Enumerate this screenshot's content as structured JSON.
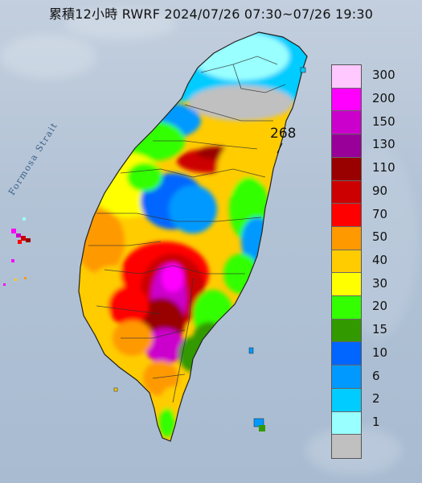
{
  "title": "累積12小時 RWRF 2024/07/26 07:30~07/26 19:30",
  "water_label": "Formosa Strait",
  "max_value_label": "268",
  "legend": {
    "items": [
      {
        "label": "300",
        "color": "#ffc9ff"
      },
      {
        "label": "200",
        "color": "#ff00ff"
      },
      {
        "label": "150",
        "color": "#cc00cc"
      },
      {
        "label": "130",
        "color": "#990099"
      },
      {
        "label": "110",
        "color": "#990000"
      },
      {
        "label": "90",
        "color": "#cc0000"
      },
      {
        "label": "70",
        "color": "#ff0000"
      },
      {
        "label": "50",
        "color": "#ff9900"
      },
      {
        "label": "40",
        "color": "#ffcc00"
      },
      {
        "label": "30",
        "color": "#ffff00"
      },
      {
        "label": "20",
        "color": "#33ff00"
      },
      {
        "label": "15",
        "color": "#339900"
      },
      {
        "label": "10",
        "color": "#0066ff"
      },
      {
        "label": "6",
        "color": "#0099ff"
      },
      {
        "label": "2",
        "color": "#00ccff"
      },
      {
        "label": "1",
        "color": "#99ffff"
      },
      {
        "label": "",
        "color": "#c0c0c0"
      }
    ]
  },
  "colors": {
    "sea": "#b3c3d6",
    "island_outline": "#222222",
    "county_border": "#333333"
  }
}
